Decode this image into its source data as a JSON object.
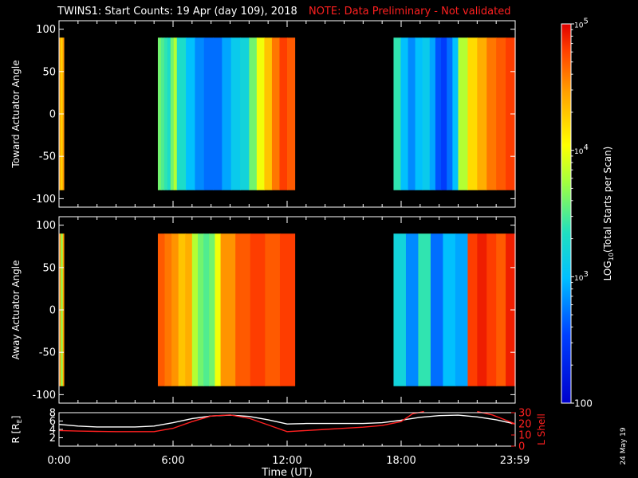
{
  "chart_data": [
    {
      "type": "heatmap",
      "title": "TWINS1: Start Counts: 19 Apr (day 109), 2018",
      "note": "NOTE: Data Preliminary - Not validated",
      "ylabel": "Toward Actuator Angle",
      "ylim": [
        -110,
        110
      ],
      "yticks": [
        "100",
        "50",
        "0",
        "-50",
        "-100"
      ],
      "ytick_values": [
        100,
        50,
        0,
        -50,
        -100
      ],
      "xlim": [
        0,
        24
      ],
      "data_extent": [
        -90,
        90
      ],
      "segments": [
        {
          "t_start": 0.0,
          "t_end": 0.25,
          "log_counts": [
            4.5,
            4.4,
            4.2,
            4.3,
            4.5
          ]
        },
        {
          "t_start": 5.2,
          "t_end": 6.2,
          "log_counts": [
            3.6,
            3.5,
            3.4,
            3.3,
            3.6,
            3.8
          ]
        },
        {
          "t_start": 6.2,
          "t_end": 10.0,
          "log_counts": [
            3.3,
            3.0,
            2.8,
            2.7,
            2.7,
            2.9,
            3.1,
            3.2
          ]
        },
        {
          "t_start": 10.0,
          "t_end": 12.4,
          "log_counts": [
            3.6,
            4.0,
            4.3,
            4.6,
            4.8,
            4.7
          ]
        },
        {
          "t_start": 17.6,
          "t_end": 19.5,
          "log_counts": [
            3.4,
            3.0,
            2.8,
            3.0,
            3.1
          ]
        },
        {
          "t_start": 19.5,
          "t_end": 21.0,
          "log_counts": [
            2.9,
            2.6,
            2.5,
            2.7,
            3.0
          ]
        },
        {
          "t_start": 21.0,
          "t_end": 24.0,
          "log_counts": [
            3.8,
            4.2,
            4.4,
            4.6,
            4.7,
            4.8
          ]
        }
      ]
    },
    {
      "type": "heatmap",
      "ylabel": "Away Actuator Angle",
      "ylim": [
        -110,
        110
      ],
      "yticks": [
        "100",
        "50",
        "0",
        "-50",
        "-100"
      ],
      "ytick_values": [
        100,
        50,
        0,
        -50,
        -100
      ],
      "xlim": [
        0,
        24
      ],
      "data_extent": [
        -90,
        90
      ],
      "segments": [
        {
          "t_start": 0.0,
          "t_end": 0.25,
          "log_counts": [
            4.6,
            4.4,
            3.6,
            3.8,
            4.5
          ]
        },
        {
          "t_start": 5.2,
          "t_end": 7.0,
          "log_counts": [
            4.7,
            4.6,
            4.5,
            4.3,
            4.4
          ]
        },
        {
          "t_start": 7.0,
          "t_end": 8.5,
          "log_counts": [
            3.8,
            3.6,
            3.5,
            3.6,
            4.0
          ]
        },
        {
          "t_start": 8.5,
          "t_end": 12.4,
          "log_counts": [
            4.5,
            4.7,
            4.8,
            4.7,
            4.8
          ]
        },
        {
          "t_start": 17.6,
          "t_end": 21.5,
          "log_counts": [
            3.2,
            2.8,
            3.4,
            2.7,
            3.0,
            2.9
          ]
        },
        {
          "t_start": 21.5,
          "t_end": 24.0,
          "log_counts": [
            4.8,
            4.9,
            4.8,
            4.7,
            4.9
          ]
        }
      ]
    },
    {
      "type": "line",
      "ylabel": "R [R_E]",
      "ylabel_main": "R [R",
      "ylabel_sub": "E",
      "ylabel_end": "]",
      "y2label": "L Shell",
      "ylim": [
        0,
        8
      ],
      "y2lim": [
        0,
        30
      ],
      "yticks": [
        "8",
        "6",
        "4",
        "2"
      ],
      "ytick_values": [
        8,
        6,
        4,
        2
      ],
      "y2ticks": [
        "30",
        "20",
        "10",
        "0"
      ],
      "y2tick_values": [
        30,
        20,
        10,
        0
      ],
      "xlim": [
        0,
        24
      ],
      "xlabel": "Time (UT)",
      "xticks": [
        "0:00",
        "6:00",
        "12:00",
        "18:00",
        "23:59"
      ],
      "xtick_values": [
        0,
        6,
        12,
        18,
        23.98
      ],
      "series": [
        {
          "key": "R",
          "color": "#ffffff",
          "x": [
            0,
            1,
            2,
            3,
            4,
            5,
            6,
            7,
            8,
            9,
            10,
            11,
            12,
            13,
            14,
            15,
            16,
            17,
            18,
            19,
            20,
            21,
            22,
            23,
            24
          ],
          "y": [
            5.2,
            4.8,
            4.6,
            4.6,
            4.6,
            4.8,
            5.6,
            6.6,
            7.2,
            7.4,
            7.1,
            6.3,
            5.3,
            5.4,
            5.4,
            5.4,
            5.4,
            5.6,
            6.2,
            6.9,
            7.3,
            7.4,
            7.0,
            6.3,
            5.3
          ]
        },
        {
          "key": "L",
          "color": "#ff2020",
          "x": [
            0,
            1,
            2,
            3,
            4,
            5,
            6,
            7,
            8,
            9,
            10,
            11,
            12,
            13,
            14,
            15,
            16,
            17,
            18,
            18.6,
            19.2
          ],
          "y": [
            14,
            13.5,
            13.2,
            13.0,
            13.0,
            13.0,
            16,
            22,
            27,
            28,
            25,
            19,
            13,
            14,
            15,
            16,
            17,
            18.5,
            22,
            29,
            31
          ]
        },
        {
          "key": "L_tail",
          "color": "#ff2020",
          "x": [
            22.0,
            22.8,
            23.4,
            24.0
          ],
          "y": [
            31,
            28,
            24,
            20
          ]
        }
      ]
    }
  ],
  "colorbar": {
    "label": "LOG",
    "label_sub": "10",
    "label_rest": "(Total Starts per Scan)",
    "range": [
      2,
      5
    ],
    "ticks": [
      {
        "value": 5,
        "base": "10",
        "exp": "5"
      },
      {
        "value": 4,
        "base": "10",
        "exp": "4"
      },
      {
        "value": 3,
        "base": "10",
        "exp": "3"
      },
      {
        "value": 2,
        "base": "100",
        "exp": ""
      }
    ]
  },
  "date_stamp": "24 May 19"
}
